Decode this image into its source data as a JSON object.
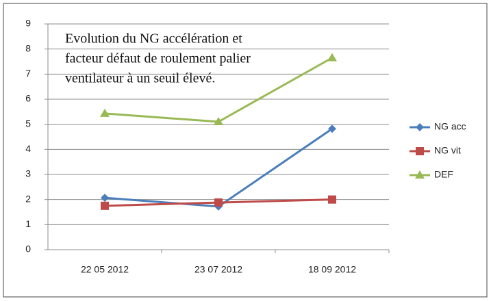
{
  "chart_data": {
    "type": "line",
    "annotation": [
      "Evolution du NG accélération et",
      "facteur défaut de roulement palier",
      "ventilateur à un seuil élevé."
    ],
    "categories": [
      "22 05 2012",
      "23 07 2012",
      "18 09 2012"
    ],
    "series": [
      {
        "name": "NG acc",
        "color": "#4a7ebb",
        "marker": "diamond",
        "values": [
          2.07,
          1.72,
          4.82
        ]
      },
      {
        "name": "NG vit",
        "color": "#be4b48",
        "marker": "square",
        "values": [
          1.75,
          1.88,
          2.0
        ]
      },
      {
        "name": "DEF",
        "color": "#98b954",
        "marker": "triangle",
        "values": [
          5.43,
          5.1,
          7.65
        ]
      }
    ],
    "ylim": [
      0,
      9
    ],
    "yticks": [
      0,
      1,
      2,
      3,
      4,
      5,
      6,
      7,
      8,
      9
    ],
    "grid": true,
    "legend": "right"
  }
}
